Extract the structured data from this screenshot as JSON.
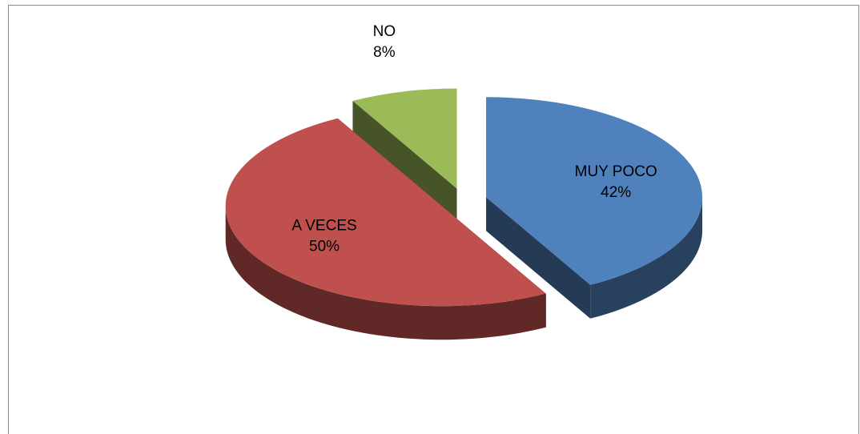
{
  "chart_data": {
    "type": "pie",
    "categories": [
      "MUY POCO",
      "A VECES",
      "NO"
    ],
    "values": [
      42,
      50,
      8
    ],
    "value_labels": [
      "42%",
      "50%",
      "8%"
    ],
    "colors": [
      "#4f81bd",
      "#c0504d",
      "#9bbb59"
    ]
  }
}
